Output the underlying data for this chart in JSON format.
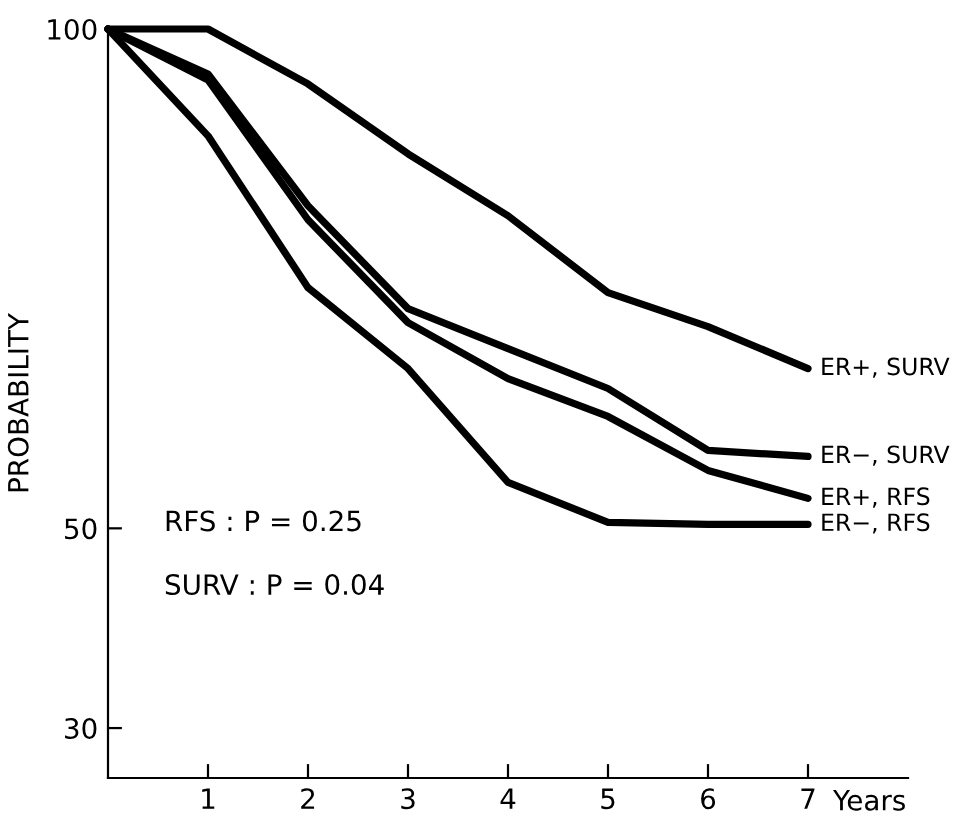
{
  "chart_data": {
    "type": "line",
    "xlabel": "Years",
    "ylabel": "PROBABILITY",
    "x": [
      0,
      1,
      2,
      3,
      4,
      5,
      6,
      7
    ],
    "series": [
      {
        "name": "ER+, SURV",
        "color": "#000000",
        "values": [
          100,
          100,
          94.5,
          87.5,
          81.3,
          73.6,
          70.2,
          66.0
        ]
      },
      {
        "name": "ER−, SURV",
        "color": "#000000",
        "values": [
          100,
          95.5,
          82.3,
          72.0,
          68.0,
          64.0,
          57.8,
          57.2
        ]
      },
      {
        "name": "ER+, RFS",
        "color": "#000000",
        "values": [
          100,
          94.9,
          80.9,
          70.6,
          65.0,
          61.2,
          55.8,
          53.0
        ]
      },
      {
        "name": "ER−, RFS",
        "color": "#000000",
        "values": [
          100,
          89.3,
          74.1,
          66.0,
          54.6,
          50.6,
          50.4,
          50.4
        ]
      }
    ],
    "xlim": [
      0,
      8
    ],
    "xticks": [
      1,
      2,
      3,
      4,
      5,
      6,
      7
    ],
    "ylim": [
      25,
      100
    ],
    "yticks": [
      30,
      50,
      100
    ],
    "annotations": [
      "RFS : P = 0.25",
      "SURV : P = 0.04"
    ],
    "grid": false,
    "legend": false,
    "marker": "none",
    "line_style": "solid"
  }
}
